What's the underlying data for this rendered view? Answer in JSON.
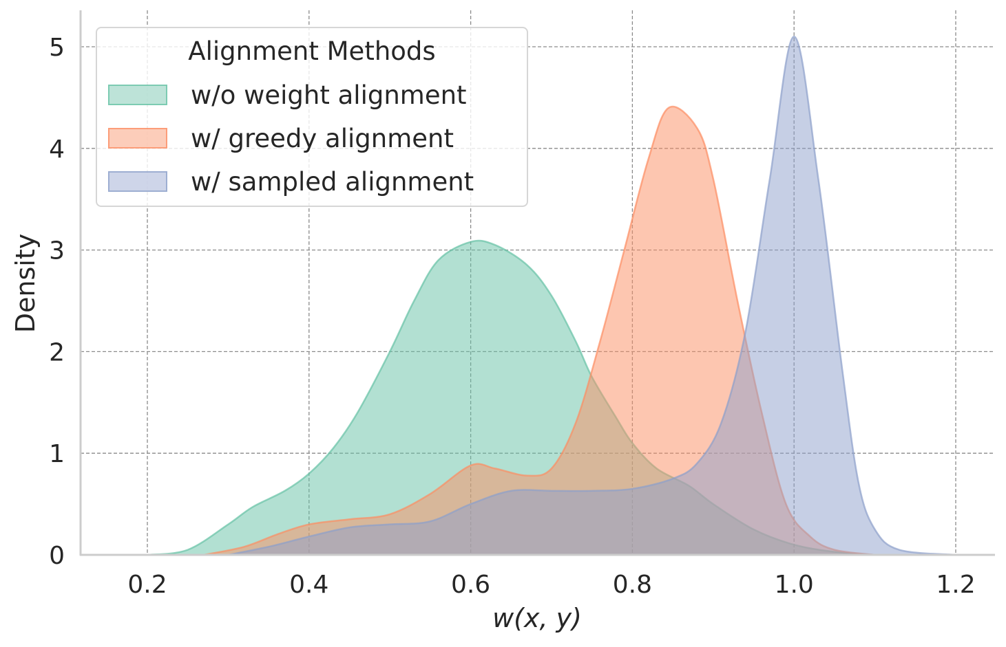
{
  "chart_data": {
    "type": "area",
    "subtype": "kde_density",
    "title": "",
    "xlabel": "w(x, y)",
    "ylabel": "Density",
    "xlim": [
      0.12,
      1.25
    ],
    "ylim": [
      0,
      5.3
    ],
    "xticks": [
      "0.2",
      "0.4",
      "0.6",
      "0.8",
      "1.0",
      "1.2"
    ],
    "yticks": [
      "0",
      "1",
      "2",
      "3",
      "4",
      "5"
    ],
    "grid": true,
    "legend_position": "upper left",
    "legend_title": "Alignment Methods",
    "series": [
      {
        "name": "w/o weight alignment",
        "color": "#66c2a5",
        "fill": "#b2dfd2",
        "peak": {
          "x": 0.6,
          "y": 3.08
        },
        "x": [
          0.2,
          0.25,
          0.3,
          0.33,
          0.37,
          0.4,
          0.43,
          0.46,
          0.5,
          0.53,
          0.56,
          0.6,
          0.63,
          0.67,
          0.7,
          0.73,
          0.75,
          0.78,
          0.8,
          0.83,
          0.87,
          0.9,
          0.95,
          1.0,
          1.05,
          1.1
        ],
        "y": [
          0,
          0.05,
          0.3,
          0.47,
          0.63,
          0.8,
          1.05,
          1.4,
          2.0,
          2.5,
          2.9,
          3.08,
          3.05,
          2.85,
          2.55,
          2.1,
          1.75,
          1.35,
          1.1,
          0.85,
          0.68,
          0.5,
          0.25,
          0.1,
          0.03,
          0
        ]
      },
      {
        "name": "w/ greedy alignment",
        "color": "#fc8d62",
        "fill": "#fcc5af",
        "peak": {
          "x": 0.845,
          "y": 4.4
        },
        "x": [
          0.27,
          0.32,
          0.36,
          0.4,
          0.45,
          0.5,
          0.55,
          0.6,
          0.63,
          0.67,
          0.7,
          0.73,
          0.76,
          0.79,
          0.82,
          0.845,
          0.88,
          0.9,
          0.93,
          0.96,
          0.99,
          1.02,
          1.05,
          1.1
        ],
        "y": [
          0,
          0.08,
          0.2,
          0.3,
          0.35,
          0.4,
          0.6,
          0.88,
          0.85,
          0.78,
          0.85,
          1.3,
          2.1,
          3.0,
          3.9,
          4.4,
          4.2,
          3.7,
          2.5,
          1.4,
          0.5,
          0.18,
          0.05,
          0
        ]
      },
      {
        "name": "w/ sampled alignment",
        "color": "#8da0cb",
        "fill": "#c6cee6",
        "peak": {
          "x": 1.0,
          "y": 5.1
        },
        "x": [
          0.3,
          0.35,
          0.4,
          0.45,
          0.5,
          0.55,
          0.6,
          0.65,
          0.7,
          0.75,
          0.8,
          0.85,
          0.88,
          0.91,
          0.94,
          0.97,
          1.0,
          1.03,
          1.06,
          1.08,
          1.1,
          1.13,
          1.2
        ],
        "y": [
          0,
          0.08,
          0.18,
          0.27,
          0.3,
          0.33,
          0.5,
          0.63,
          0.63,
          0.63,
          0.65,
          0.75,
          0.9,
          1.3,
          2.2,
          3.7,
          5.1,
          3.7,
          1.8,
          0.7,
          0.25,
          0.05,
          0
        ]
      }
    ]
  }
}
